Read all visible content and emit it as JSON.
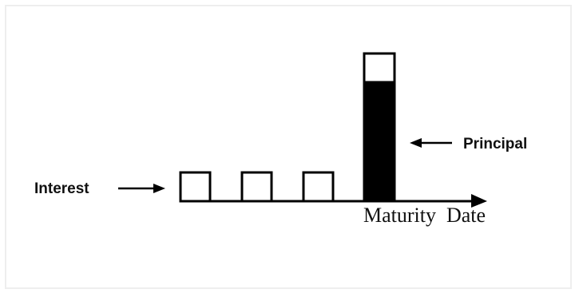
{
  "labels": {
    "interest": "Interest",
    "principal": "Principal",
    "maturity": "Maturity  Date"
  },
  "colors": {
    "stroke": "#000000",
    "fill_principal": "#000000",
    "background": "#ffffff"
  }
}
